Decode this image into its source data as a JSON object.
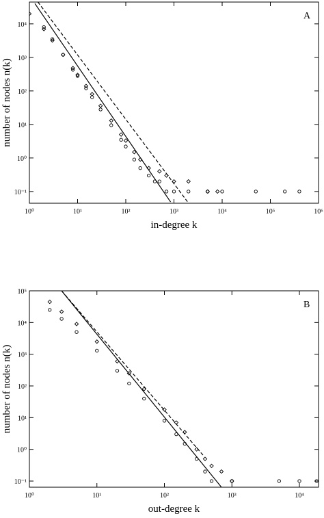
{
  "chart_data": [
    {
      "type": "scatter",
      "x_label": "in-degree k",
      "y_label": "number of nodes n(k)",
      "annotation": "A",
      "log_x": true,
      "log_y": true,
      "xlim": [
        1,
        1000000
      ],
      "ylim": [
        0.0447,
        44700
      ],
      "xticks": [
        {
          "value": 1,
          "label": "10⁰"
        },
        {
          "value": 10,
          "label": "10¹"
        },
        {
          "value": 100,
          "label": "10²"
        },
        {
          "value": 1000,
          "label": "10³"
        },
        {
          "value": 10000,
          "label": "10⁴"
        },
        {
          "value": 100000,
          "label": "10⁵"
        },
        {
          "value": 1000000,
          "label": "10⁶"
        }
      ],
      "yticks": [
        {
          "value": 0.1,
          "label": "10⁻¹"
        },
        {
          "value": 1,
          "label": "10⁰"
        },
        {
          "value": 10,
          "label": "10¹"
        },
        {
          "value": 100,
          "label": "10²"
        },
        {
          "value": 1000,
          "label": "10³"
        },
        {
          "value": 10000,
          "label": "10⁴"
        }
      ],
      "series": [
        {
          "color": "#000000",
          "marker": "circle",
          "x": [
            2,
            3,
            5,
            8,
            10,
            15,
            20,
            30,
            50,
            80,
            100,
            150,
            200,
            300,
            400,
            500,
            700,
            1000,
            2000,
            5000,
            10000,
            50000,
            200000,
            400000
          ],
          "values": [
            8000,
            3500,
            1200,
            430,
            280,
            120,
            65,
            28,
            9.5,
            3.5,
            2.2,
            0.9,
            0.5,
            0.3,
            0.2,
            0.2,
            0.1,
            0.1,
            0.1,
            0.1,
            0.1,
            0.1,
            0.1,
            0.1
          ]
        },
        {
          "color": "#000000",
          "marker": "diamond",
          "x": [
            1,
            2,
            3,
            5,
            8,
            10,
            15,
            20,
            30,
            50,
            80,
            100,
            150,
            200,
            300,
            500,
            700,
            1000,
            2000,
            5000,
            8000
          ],
          "values": [
            20000,
            7000,
            3200,
            1200,
            480,
            300,
            140,
            80,
            36,
            13,
            5,
            3.3,
            1.5,
            0.9,
            0.5,
            0.4,
            0.3,
            0.2,
            0.2,
            0.1,
            0.1
          ]
        },
        {
          "color": "#000000",
          "line_style": "solid",
          "x": [
            1.3,
            850
          ],
          "values": [
            40300,
            0.049
          ]
        },
        {
          "color": "#000000",
          "line_style": "dashed",
          "x": [
            1.5,
            1900
          ],
          "values": [
            45000,
            0.05
          ]
        }
      ]
    },
    {
      "type": "scatter",
      "x_label": "out-degree k",
      "y_label": "number of nodes n(k)",
      "annotation": "B",
      "log_x": true,
      "log_y": true,
      "xlim": [
        1,
        19200
      ],
      "ylim": [
        0.064,
        100000
      ],
      "xticks": [
        {
          "value": 1,
          "label": "10⁰"
        },
        {
          "value": 10,
          "label": "10¹"
        },
        {
          "value": 100,
          "label": "10²"
        },
        {
          "value": 1000,
          "label": "10³"
        },
        {
          "value": 10000,
          "label": "10⁴"
        }
      ],
      "yticks": [
        {
          "value": 0.1,
          "label": "10⁻¹"
        },
        {
          "value": 1,
          "label": "10⁰"
        },
        {
          "value": 10,
          "label": "10¹"
        },
        {
          "value": 100,
          "label": "10²"
        },
        {
          "value": 1000,
          "label": "10³"
        },
        {
          "value": 10000,
          "label": "10⁴"
        },
        {
          "value": 100000,
          "label": "10⁵"
        }
      ],
      "series": [
        {
          "color": "#000000",
          "marker": "circle",
          "x": [
            2,
            3,
            5,
            10,
            20,
            30,
            50,
            100,
            150,
            200,
            300,
            400,
            500,
            1000,
            5000,
            10000,
            18000
          ],
          "values": [
            25000,
            13000,
            5000,
            1300,
            300,
            120,
            40,
            8,
            3,
            1.5,
            0.5,
            0.2,
            0.1,
            0.1,
            0.1,
            0.1,
            0.1
          ]
        },
        {
          "color": "#000000",
          "marker": "diamond",
          "x": [
            2,
            3,
            5,
            10,
            20,
            30,
            50,
            100,
            150,
            200,
            300,
            400,
            500,
            700,
            1000
          ],
          "values": [
            45000,
            22000,
            9000,
            2500,
            600,
            250,
            80,
            18,
            7,
            3.5,
            1,
            0.5,
            0.3,
            0.2,
            0.1
          ]
        },
        {
          "color": "#000000",
          "line_style": "solid",
          "x": [
            3,
            700
          ],
          "values": [
            100000,
            0.064
          ]
        },
        {
          "color": "#000000",
          "line_style": "dashed",
          "x": [
            3,
            373
          ],
          "values": [
            100000,
            0.66
          ]
        }
      ]
    }
  ]
}
